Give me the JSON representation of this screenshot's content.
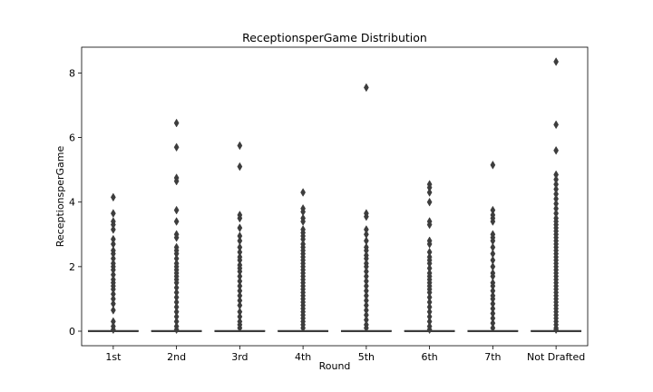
{
  "chart_data": {
    "type": "box",
    "title": "ReceptionsperGame Distribution",
    "xlabel": "Round",
    "ylabel": "ReceptionsperGame",
    "ylim": [
      -0.45,
      8.8
    ],
    "yticks": [
      0,
      2,
      4,
      6,
      8
    ],
    "grid": false,
    "legend": "none",
    "box_color": "#3d3d3d",
    "categories": [
      "1st",
      "2nd",
      "3rd",
      "4th",
      "5th",
      "6th",
      "7th",
      "Not Drafted"
    ],
    "boxes": [
      {
        "q1": 0,
        "median": 0,
        "q3": 0,
        "whisker_low": 0,
        "whisker_high": 0,
        "outliers": [
          4.15,
          3.65,
          3.4,
          3.3,
          3.15,
          2.85,
          2.7,
          2.5,
          2.4,
          2.25,
          2.1,
          2.0,
          1.9,
          1.75,
          1.6,
          1.5,
          1.4,
          1.3,
          1.15,
          1.0,
          0.85,
          0.65,
          0.3,
          0.15,
          0.05
        ]
      },
      {
        "q1": 0,
        "median": 0,
        "q3": 0,
        "whisker_low": 0,
        "whisker_high": 0,
        "outliers": [
          6.45,
          5.7,
          4.75,
          4.65,
          3.75,
          3.4,
          3.0,
          2.9,
          2.6,
          2.5,
          2.4,
          2.25,
          2.1,
          2.0,
          1.9,
          1.8,
          1.7,
          1.6,
          1.5,
          1.35,
          1.2,
          1.05,
          0.9,
          0.75,
          0.6,
          0.45,
          0.3,
          0.15,
          0.05
        ]
      },
      {
        "q1": 0,
        "median": 0,
        "q3": 0,
        "whisker_low": 0,
        "whisker_high": 0,
        "outliers": [
          5.75,
          5.1,
          3.6,
          3.5,
          3.2,
          2.95,
          2.8,
          2.6,
          2.45,
          2.3,
          2.2,
          2.05,
          1.95,
          1.85,
          1.7,
          1.55,
          1.4,
          1.25,
          1.1,
          0.95,
          0.8,
          0.6,
          0.45,
          0.3,
          0.2,
          0.1
        ]
      },
      {
        "q1": 0,
        "median": 0,
        "q3": 0,
        "whisker_low": 0,
        "whisker_high": 0,
        "outliers": [
          4.3,
          3.8,
          3.7,
          3.5,
          3.4,
          3.15,
          3.05,
          2.95,
          2.85,
          2.7,
          2.6,
          2.5,
          2.4,
          2.3,
          2.2,
          2.1,
          2.0,
          1.9,
          1.8,
          1.7,
          1.6,
          1.5,
          1.4,
          1.3,
          1.2,
          1.1,
          1.0,
          0.9,
          0.8,
          0.7,
          0.6,
          0.5,
          0.4,
          0.3,
          0.2,
          0.1
        ]
      },
      {
        "q1": 0,
        "median": 0,
        "q3": 0,
        "whisker_low": 0,
        "whisker_high": 0,
        "outliers": [
          7.55,
          3.65,
          3.55,
          3.15,
          3.0,
          2.8,
          2.6,
          2.5,
          2.35,
          2.25,
          2.1,
          2.0,
          1.85,
          1.7,
          1.55,
          1.4,
          1.25,
          1.1,
          0.95,
          0.8,
          0.65,
          0.5,
          0.35,
          0.2,
          0.1
        ]
      },
      {
        "q1": 0,
        "median": 0,
        "q3": 0,
        "whisker_low": 0,
        "whisker_high": 0,
        "outliers": [
          4.55,
          4.45,
          4.3,
          4.0,
          3.4,
          3.3,
          2.8,
          2.7,
          2.45,
          2.3,
          2.2,
          2.1,
          1.95,
          1.8,
          1.7,
          1.6,
          1.5,
          1.4,
          1.3,
          1.2,
          1.05,
          0.9,
          0.75,
          0.6,
          0.45,
          0.3,
          0.15,
          0.05
        ]
      },
      {
        "q1": 0,
        "median": 0,
        "q3": 0,
        "whisker_low": 0,
        "whisker_high": 0,
        "outliers": [
          5.15,
          3.75,
          3.6,
          3.5,
          3.4,
          3.0,
          2.9,
          2.8,
          2.6,
          2.4,
          2.2,
          2.0,
          1.8,
          1.7,
          1.5,
          1.4,
          1.25,
          1.1,
          1.0,
          0.85,
          0.7,
          0.55,
          0.4,
          0.25,
          0.1
        ]
      },
      {
        "q1": 0,
        "median": 0,
        "q3": 0,
        "whisker_low": 0,
        "whisker_high": 0,
        "outliers": [
          8.35,
          6.4,
          5.6,
          4.85,
          4.7,
          4.55,
          4.4,
          4.25,
          4.1,
          3.95,
          3.8,
          3.65,
          3.5,
          3.4,
          3.3,
          3.2,
          3.1,
          3.0,
          2.9,
          2.8,
          2.7,
          2.6,
          2.5,
          2.4,
          2.3,
          2.2,
          2.1,
          2.0,
          1.9,
          1.8,
          1.7,
          1.6,
          1.5,
          1.4,
          1.3,
          1.2,
          1.1,
          1.0,
          0.9,
          0.8,
          0.7,
          0.6,
          0.5,
          0.4,
          0.3,
          0.2,
          0.1,
          0.05
        ]
      }
    ]
  }
}
